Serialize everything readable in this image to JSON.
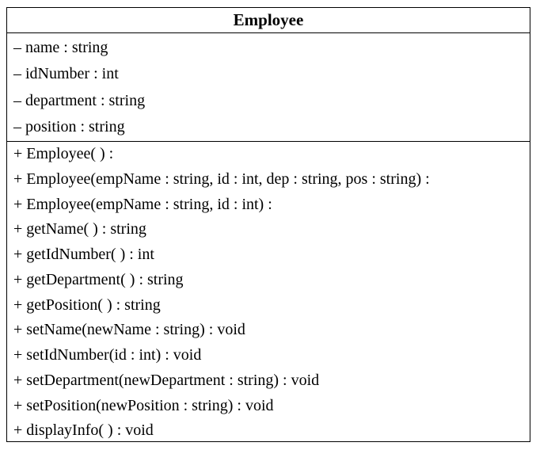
{
  "class_name": "Employee",
  "attributes": [
    "– name : string",
    "– idNumber : int",
    "– department : string",
    "– position : string"
  ],
  "operations": [
    "+ Employee( ) :",
    "+ Employee(empName : string, id : int, dep : string, pos : string) :",
    "+ Employee(empName : string, id : int) :",
    "+ getName( ) : string",
    "+ getIdNumber( ) : int",
    "+ getDepartment( ) : string",
    "+ getPosition( ) : string",
    "+ setName(newName : string) : void",
    "+ setIdNumber(id : int) : void",
    "+ setDepartment(newDepartment : string) : void",
    "+ setPosition(newPosition : string) : void",
    "+ displayInfo( ) : void"
  ]
}
